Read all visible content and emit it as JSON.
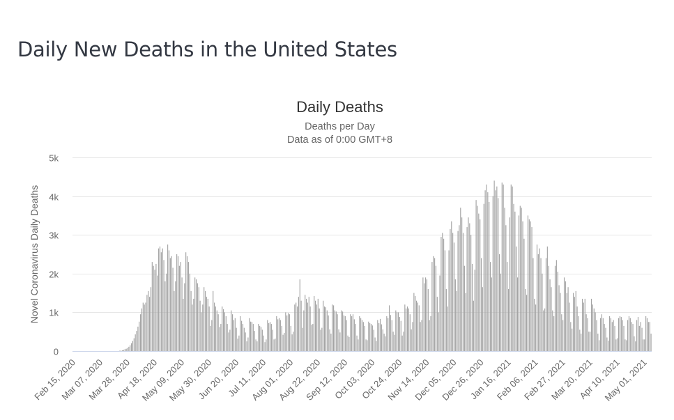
{
  "page": {
    "title": "Daily New Deaths in the United States"
  },
  "chart_data": {
    "type": "bar",
    "title": "Daily Deaths",
    "subtitle_lines": [
      "Deaths per Day",
      "Data as of 0:00 GMT+8"
    ],
    "xlabel": "",
    "ylabel": "Novel Coronavirus Daily Deaths",
    "ylim": [
      0,
      5000
    ],
    "yticks": [
      0,
      1000,
      2000,
      3000,
      4000,
      5000
    ],
    "ytick_labels": [
      "0",
      "1k",
      "2k",
      "3k",
      "4k",
      "5k"
    ],
    "grid": true,
    "bar_color": "#a3a3a3",
    "x_start": "Feb 15, 2020",
    "x_tick_interval_days": 21,
    "xtick_labels": [
      "Feb 15, 2020",
      "Mar 07, 2020",
      "Mar 28, 2020",
      "Apr 18, 2020",
      "May 09, 2020",
      "May 30, 2020",
      "Jun 20, 2020",
      "Jul 11, 2020",
      "Aug 01, 2020",
      "Aug 22, 2020",
      "Sep 12, 2020",
      "Oct 03, 2020",
      "Oct 24, 2020",
      "Nov 14, 2020",
      "Dec 05, 2020",
      "Dec 26, 2020",
      "Jan 16, 2021",
      "Feb 06, 2021",
      "Feb 27, 2021",
      "Mar 20, 2021",
      "Apr 10, 2021",
      "May 01, 2021"
    ],
    "series": [
      {
        "name": "Daily Deaths",
        "values": [
          0,
          0,
          0,
          0,
          0,
          0,
          0,
          0,
          0,
          0,
          0,
          0,
          0,
          0,
          0,
          0,
          0,
          0,
          0,
          0,
          0,
          0,
          0,
          0,
          0,
          0,
          0,
          0,
          0,
          0,
          0,
          0,
          0,
          0,
          0,
          0,
          10,
          12,
          20,
          30,
          50,
          60,
          80,
          110,
          150,
          200,
          260,
          330,
          430,
          520,
          630,
          760,
          950,
          1100,
          1250,
          1200,
          1250,
          1450,
          1550,
          1400,
          1650,
          2300,
          2200,
          2100,
          2250,
          1950,
          2650,
          2700,
          2550,
          2650,
          2350,
          1800,
          2000,
          2750,
          2600,
          2400,
          2450,
          2150,
          1550,
          1800,
          2500,
          2450,
          2200,
          2300,
          1900,
          1350,
          1750,
          2550,
          2450,
          2300,
          2000,
          1550,
          1200,
          1350,
          1900,
          1850,
          1750,
          1650,
          1300,
          1000,
          1200,
          1650,
          1550,
          1400,
          1350,
          1150,
          650,
          800,
          1550,
          1250,
          1150,
          1050,
          950,
          620,
          700,
          1150,
          1080,
          1000,
          900,
          700,
          480,
          550,
          1050,
          950,
          800,
          850,
          600,
          320,
          400,
          900,
          780,
          700,
          600,
          480,
          250,
          350,
          850,
          760,
          750,
          700,
          520,
          300,
          250,
          700,
          650,
          620,
          550,
          400,
          230,
          300,
          800,
          720,
          750,
          700,
          550,
          300,
          320,
          900,
          820,
          850,
          800,
          650,
          420,
          470,
          1000,
          920,
          980,
          950,
          650,
          430,
          500,
          1200,
          1250,
          1150,
          1400,
          1850,
          1300,
          600,
          1050,
          1450,
          1350,
          1250,
          1400,
          1150,
          680,
          700,
          1420,
          1300,
          1200,
          1350,
          1100,
          550,
          600,
          1300,
          1150,
          1130,
          1050,
          920,
          560,
          450,
          1200,
          1180,
          1050,
          1020,
          950,
          560,
          480,
          1050,
          1020,
          920,
          900,
          800,
          400,
          360,
          950,
          900,
          950,
          820,
          700,
          400,
          300,
          900,
          850,
          800,
          750,
          650,
          300,
          280,
          760,
          720,
          700,
          660,
          550,
          350,
          260,
          800,
          720,
          830,
          690,
          560,
          450,
          380,
          900,
          850,
          1180,
          930,
          800,
          500,
          420,
          1050,
          1000,
          1000,
          880,
          780,
          400,
          500,
          1200,
          1100,
          1150,
          1100,
          950,
          560,
          750,
          1500,
          1420,
          1300,
          1250,
          1180,
          750,
          800,
          1900,
          1750,
          1900,
          1850,
          1600,
          800,
          900,
          2300,
          2450,
          2400,
          2200,
          1400,
          1000,
          1950,
          2950,
          3050,
          2900,
          2600,
          1600,
          1150,
          2600,
          3150,
          3350,
          3050,
          2800,
          1850,
          1550,
          3100,
          3250,
          3700,
          3450,
          3050,
          2200,
          1500,
          3200,
          3450,
          3300,
          3000,
          2250,
          1300,
          2100,
          3900,
          3750,
          3550,
          3400,
          2400,
          1650,
          3800,
          4150,
          4300,
          4100,
          3850,
          2300,
          1900,
          4000,
          4400,
          4150,
          4250,
          3950,
          2500,
          2000,
          4350,
          4300,
          3700,
          3250,
          2300,
          1600,
          3450,
          4300,
          4250,
          3800,
          3600,
          2700,
          1900,
          3500,
          3750,
          3700,
          3350,
          2900,
          1600,
          1450,
          3500,
          3400,
          3350,
          3200,
          2400,
          1350,
          1200,
          2750,
          2500,
          2650,
          2400,
          2000,
          1050,
          1100,
          2400,
          2700,
          2200,
          1850,
          1650,
          1050,
          900,
          2200,
          2350,
          2050,
          1700,
          1500,
          950,
          800,
          1900,
          1800,
          1500,
          1650,
          1250,
          750,
          580,
          1500,
          1400,
          1550,
          1150,
          900,
          550,
          450,
          1350,
          1250,
          1350,
          950,
          850,
          500,
          500,
          1350,
          1200,
          1100,
          1000,
          800,
          450,
          280,
          850,
          950,
          850,
          700,
          600,
          350,
          270,
          900,
          850,
          750,
          800,
          650,
          300,
          330,
          850,
          900,
          880,
          800,
          650,
          300,
          280,
          800,
          900,
          850,
          750,
          700,
          380,
          250,
          800,
          880,
          650,
          750,
          600,
          300,
          300,
          900,
          850,
          750,
          750,
          450
        ]
      }
    ]
  }
}
